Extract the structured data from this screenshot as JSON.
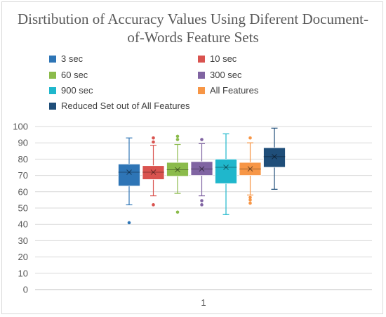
{
  "chart_data": {
    "type": "box",
    "title_lines": [
      "Disrtibution of Accuracy Values Using Diferent Document-",
      "of-Words Feature Sets"
    ],
    "categories": [
      "1"
    ],
    "ylim": [
      0,
      100
    ],
    "yticks": [
      0,
      10,
      20,
      30,
      40,
      50,
      60,
      70,
      80,
      90,
      100
    ],
    "grid": true,
    "legend_position": "top",
    "series": [
      {
        "name": "3 sec",
        "color": "#2e75b6",
        "min": 52,
        "q1": 63.5,
        "median": 72,
        "mean": 72,
        "q3": 77,
        "max": 93,
        "outliers": [
          41
        ]
      },
      {
        "name": "10 sec",
        "color": "#d9534f",
        "min": 57.5,
        "q1": 67.5,
        "median": 72,
        "mean": 72,
        "q3": 76,
        "max": 88.5,
        "outliers": [
          52,
          90.5,
          93
        ]
      },
      {
        "name": "60 sec",
        "color": "#8bbb4b",
        "min": 59,
        "q1": 69.5,
        "median": 73.5,
        "mean": 73.5,
        "q3": 78,
        "max": 89,
        "outliers": [
          47.5,
          92,
          94
        ]
      },
      {
        "name": "300 sec",
        "color": "#8064a2",
        "min": 57.5,
        "q1": 70,
        "median": 74,
        "mean": 74,
        "q3": 78.5,
        "max": 89.5,
        "outliers": [
          52,
          54.5,
          92
        ]
      },
      {
        "name": "900 sec",
        "color": "#1fb7cc",
        "min": 46,
        "q1": 65,
        "median": 75,
        "mean": 75,
        "q3": 80,
        "max": 95.5,
        "outliers": []
      },
      {
        "name": "All Features",
        "color": "#f79646",
        "min": 58,
        "q1": 70,
        "median": 74,
        "mean": 74,
        "q3": 78,
        "max": 90,
        "outliers": [
          53,
          55,
          56.5,
          93
        ]
      },
      {
        "name": "Reduced Set out of All Features",
        "color": "#1f4e79",
        "min": 61.5,
        "q1": 75,
        "median": 81.5,
        "mean": 81.5,
        "q3": 87,
        "max": 99,
        "outliers": []
      }
    ]
  }
}
